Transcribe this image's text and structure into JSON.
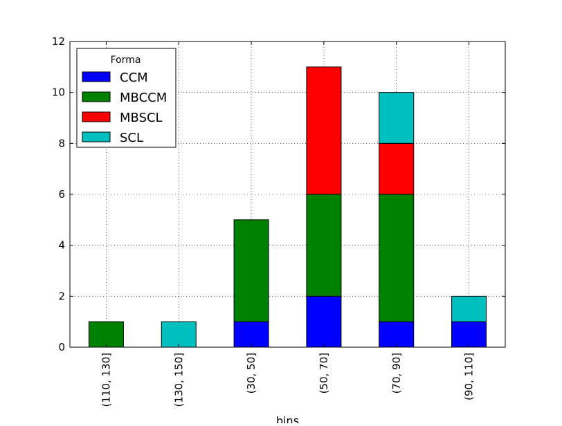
{
  "chart_data": {
    "type": "bar",
    "stacked": true,
    "title": "",
    "xlabel": "bins",
    "ylabel": "",
    "categories": [
      "(110, 130]",
      "(130, 150]",
      "(30, 50]",
      "(50, 70]",
      "(70, 90]",
      "(90, 110]"
    ],
    "series": [
      {
        "name": "CCM",
        "color": "#0000ff",
        "values": [
          0,
          0,
          1,
          2,
          1,
          1
        ]
      },
      {
        "name": "MBCCM",
        "color": "#008000",
        "values": [
          1,
          0,
          4,
          4,
          5,
          0
        ]
      },
      {
        "name": "MBSCL",
        "color": "#ff0000",
        "values": [
          0,
          0,
          0,
          5,
          2,
          0
        ]
      },
      {
        "name": "SCL",
        "color": "#00bfbf",
        "values": [
          0,
          1,
          0,
          0,
          2,
          1
        ]
      }
    ],
    "ylim": [
      0,
      12
    ],
    "yticks": [
      "0",
      "2",
      "4",
      "6",
      "8",
      "10",
      "12"
    ],
    "grid": true,
    "legend": {
      "title": "Forma",
      "placement": "top-left"
    }
  }
}
